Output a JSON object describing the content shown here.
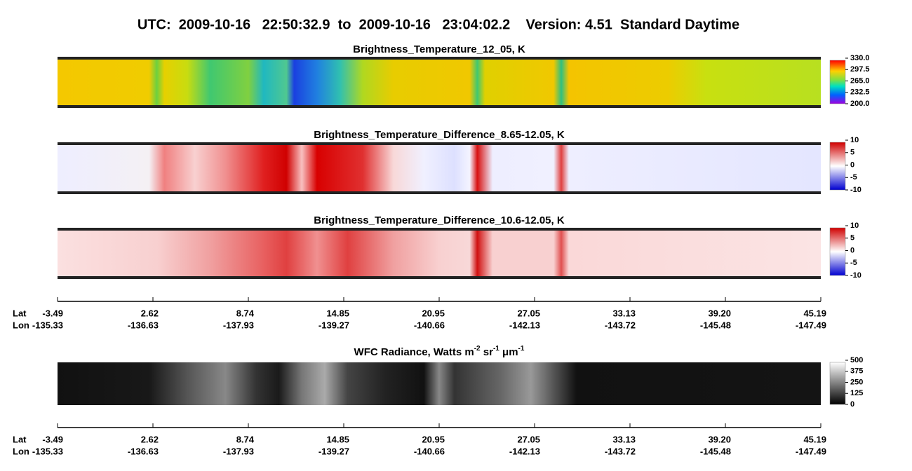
{
  "header": {
    "title": "UTC:  2009-10-16   22:50:32.9  to  2009-10-16   23:04:02.2    Version: 4.51  Standard Daytime"
  },
  "panels": [
    {
      "title": [
        "Brightness_Temperature_12_05, K"
      ],
      "colorbar": [
        "330.0",
        "297.5",
        "265.0",
        "232.5",
        "200.0"
      ]
    },
    {
      "title": [
        "Brightness_Temperature_Difference_8.65-12.05, K"
      ],
      "colorbar": [
        "10",
        "5",
        "0",
        "-5",
        "-10"
      ]
    },
    {
      "title": [
        "Brightness_Temperature_Difference_10.6-12.05, K"
      ],
      "colorbar": [
        "10",
        "5",
        "0",
        "-5",
        "-10"
      ]
    },
    {
      "title": [
        "WFC Radiance, Watts m",
        "-2",
        " sr",
        "-1",
        " μm",
        "-1"
      ],
      "colorbar": [
        "500",
        "375",
        "250",
        "125",
        "0"
      ]
    }
  ],
  "axes": [
    {
      "lat_label": "Lat",
      "lon_label": "Lon",
      "lat": [
        "-3.49",
        "2.62",
        "8.74",
        "14.85",
        "20.95",
        "27.05",
        "33.13",
        "39.20",
        "45.19"
      ],
      "lon": [
        "-135.33",
        "-136.63",
        "-137.93",
        "-139.27",
        "-140.66",
        "-142.13",
        "-143.72",
        "-145.48",
        "-147.49"
      ]
    },
    {
      "lat_label": "Lat",
      "lon_label": "Lon",
      "lat": [
        "-3.49",
        "2.62",
        "8.74",
        "14.85",
        "20.95",
        "27.05",
        "33.13",
        "39.20",
        "45.19"
      ],
      "lon": [
        "-135.33",
        "-136.63",
        "-137.93",
        "-139.27",
        "-140.66",
        "-142.13",
        "-143.72",
        "-145.48",
        "-147.49"
      ]
    }
  ]
}
